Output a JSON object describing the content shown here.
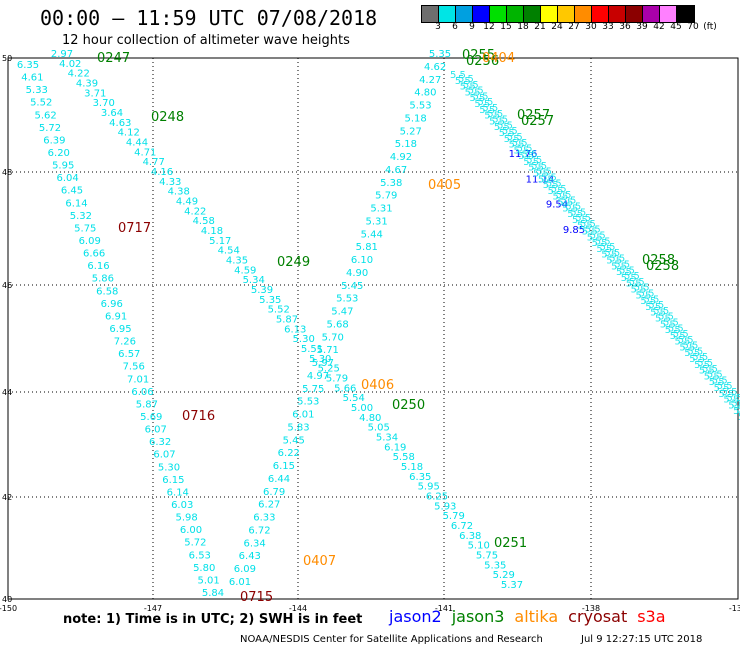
{
  "header": {
    "title": "00:00 – 11:59 UTC 07/08/2018",
    "subtitle": "12 hour collection of altimeter wave heights"
  },
  "colorscale": {
    "colors": [
      "#6e6e6e",
      "#00e5e5",
      "#00a0e0",
      "#0000ff",
      "#00e000",
      "#00b400",
      "#008000",
      "#ffff00",
      "#ffc800",
      "#ff8c00",
      "#ff0000",
      "#c80000",
      "#8b0000",
      "#aa00aa",
      "#ff80ff",
      "#000000"
    ],
    "labels": [
      "3",
      "6",
      "9",
      "12",
      "15",
      "18",
      "21",
      "24",
      "27",
      "30",
      "33",
      "36",
      "39",
      "42",
      "45",
      "70",
      "(ft)"
    ]
  },
  "axes": {
    "lat_labels": [
      "50",
      "48",
      "46",
      "44",
      "42",
      "40"
    ],
    "lon_labels": [
      "-150",
      "-147",
      "-144",
      "-141",
      "-138",
      "-135"
    ]
  },
  "colors": {
    "wave": "#00e0e8",
    "jason2": "#0000ff",
    "jason3": "#008000",
    "altika": "#ff8c00",
    "cryosat": "#8b0000",
    "s3a": "#ff0000"
  },
  "tracks": [
    {
      "values": [
        "6.35",
        "4.61",
        "5.33",
        "5.52",
        "5.62",
        "5.72",
        "6.39",
        "6.20",
        "5.95",
        "6.04",
        "6.45",
        "6.14",
        "5.32",
        "5.75",
        "6.09",
        "6.66",
        "6.16",
        "5.86",
        "6.58",
        "6.96",
        "6.91",
        "6.95",
        "7.26",
        "6.57",
        "7.56",
        "7.01",
        "6.06",
        "5.87",
        "5.69",
        "6.07",
        "6.32",
        "6.07",
        "5.30",
        "6.15",
        "6.14",
        "6.03",
        "5.98",
        "6.00",
        "5.72",
        "6.53",
        "5.80",
        "5.01",
        "5.84"
      ]
    },
    {
      "values": [
        "2.97",
        "4.02",
        "4.22",
        "4.39",
        "3.71",
        "3.70",
        "3.64",
        "4.63",
        "4.12",
        "4.44",
        "4.71",
        "4.77",
        "4.16",
        "4.33",
        "4.38",
        "4.49",
        "4.22",
        "4.58",
        "4.18",
        "5.17",
        "4.54",
        "4.35",
        "4.59",
        "5.34",
        "5.39",
        "5.35",
        "5.52",
        "5.87",
        "6.13",
        "5.30",
        "5.51",
        "5.30",
        "5.25",
        "5.79",
        "5.66",
        "5.54",
        "5.00",
        "4.80",
        "5.05",
        "5.34",
        "6.19",
        "5.58",
        "5.18",
        "6.35",
        "5.95",
        "6.25",
        "5.93",
        "5.79",
        "6.72",
        "6.38",
        "5.10",
        "5.75",
        "5.35",
        "5.29",
        "5.37"
      ]
    },
    {
      "values": [
        "5.35",
        "4.62",
        "4.27",
        "4.80",
        "5.53",
        "5.18",
        "5.27",
        "5.18",
        "4.92",
        "4.67",
        "5.38",
        "5.79",
        "5.31",
        "5.31",
        "5.44",
        "5.81",
        "6.10",
        "4.90",
        "5.45",
        "5.53",
        "5.47",
        "5.68",
        "5.70",
        "5.71",
        "5.97",
        "4.97",
        "5.75",
        "5.53",
        "6.01",
        "5.83",
        "5.45",
        "6.22",
        "6.15",
        "6.44",
        "6.79",
        "6.27",
        "6.33",
        "6.72",
        "6.34",
        "6.43",
        "6.09",
        "6.01"
      ]
    },
    {
      "values": [
        "11.76",
        "11.14",
        "9.54",
        "9.85"
      ]
    }
  ],
  "passes": [
    {
      "label": "0247",
      "sat": "jason3"
    },
    {
      "label": "0248",
      "sat": "jason3"
    },
    {
      "label": "0249",
      "sat": "jason3"
    },
    {
      "label": "0250",
      "sat": "jason3"
    },
    {
      "label": "0251",
      "sat": "jason3"
    },
    {
      "label": "0255",
      "sat": "jason3"
    },
    {
      "label": "0256",
      "sat": "jason3"
    },
    {
      "label": "0404",
      "sat": "altika"
    },
    {
      "label": "0257",
      "sat": "jason3"
    },
    {
      "label": "0257",
      "sat": "jason3"
    },
    {
      "label": "0258",
      "sat": "jason3"
    },
    {
      "label": "0258",
      "sat": "jason3"
    },
    {
      "label": "0405",
      "sat": "altika"
    },
    {
      "label": "0406",
      "sat": "altika"
    },
    {
      "label": "0407",
      "sat": "altika"
    },
    {
      "label": "0717",
      "sat": "cryosat"
    },
    {
      "label": "0716",
      "sat": "cryosat"
    },
    {
      "label": "0715",
      "sat": "cryosat"
    }
  ],
  "note": "note:  1) Time is in UTC;  2) SWH is in feet",
  "legend": [
    {
      "name": "jason2",
      "sat": "jason2"
    },
    {
      "name": "jason3",
      "sat": "jason3"
    },
    {
      "name": "altika",
      "sat": "altika"
    },
    {
      "name": "cryosat",
      "sat": "cryosat"
    },
    {
      "name": "s3a",
      "sat": "s3a"
    }
  ],
  "footer": {
    "credit": "NOAA/NESDIS Center for Satellite Applications and Research",
    "timestamp": "Jul  9 12:27:15 UTC 2018"
  }
}
